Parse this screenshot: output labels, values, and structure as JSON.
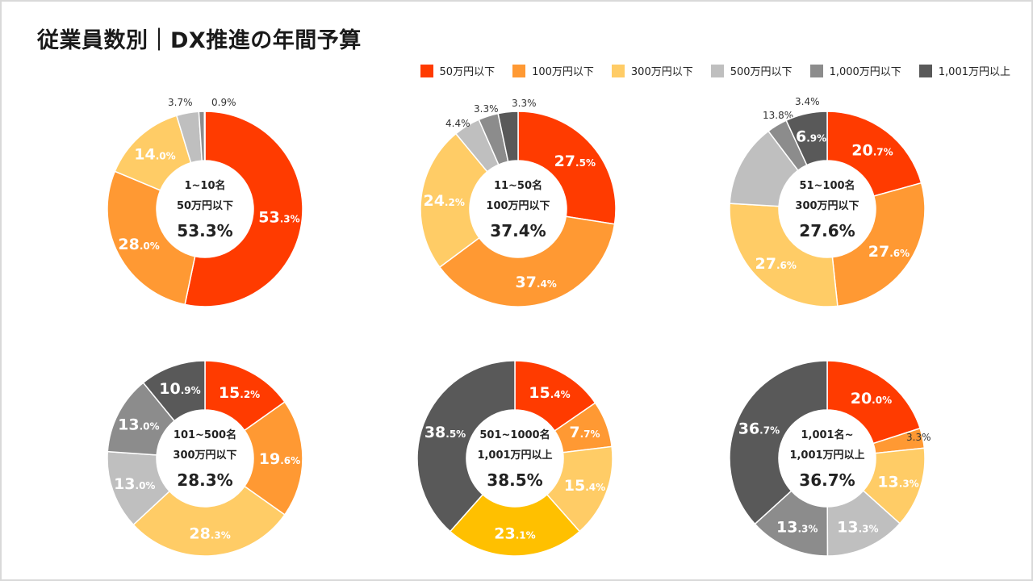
{
  "title": "従業員数別｜DX推進の年間予算",
  "legend": [
    {
      "label": "50万円以下",
      "color": "#ff3b00"
    },
    {
      "label": "100万円以下",
      "color": "#ff9933"
    },
    {
      "label": "300万円以下",
      "color": "#ffcc66"
    },
    {
      "label": "500万円以下",
      "color": "#bfbfbf"
    },
    {
      "label": "1,000万円以下",
      "color": "#8c8c8c"
    },
    {
      "label": "1,001万円以上",
      "color": "#595959"
    }
  ],
  "chart_data": [
    {
      "type": "pie",
      "group": "1~10名",
      "center_label": "50万円以下",
      "center_value": "53.3%",
      "categories": [
        "50万円以下",
        "100万円以下",
        "300万円以下",
        "500万円以下",
        "1,000万円以下",
        "1,001万円以上"
      ],
      "values": [
        53.3,
        28.0,
        14.0,
        3.7,
        0.9,
        0.1
      ],
      "labels": [
        "53.3%",
        "28.0%",
        "14.0%",
        "3.7%",
        "0.9%",
        ""
      ]
    },
    {
      "type": "pie",
      "group": "11~50名",
      "center_label": "100万円以下",
      "center_value": "37.4%",
      "categories": [
        "50万円以下",
        "100万円以下",
        "300万円以下",
        "500万円以下",
        "1,000万円以下",
        "1,001万円以上"
      ],
      "values": [
        27.5,
        37.4,
        24.2,
        4.4,
        3.3,
        3.3
      ],
      "labels": [
        "27.5%",
        "37.4%",
        "24.2%",
        "4.4%",
        "3.3%",
        "3.3%"
      ]
    },
    {
      "type": "pie",
      "group": "51~100名",
      "center_label": "300万円以下",
      "center_value": "27.6%",
      "categories": [
        "50万円以下",
        "100万円以下",
        "300万円以下",
        "500万円以下",
        "1,000万円以下",
        "1,001万円以上"
      ],
      "values": [
        20.7,
        27.6,
        27.6,
        13.8,
        3.4,
        6.9
      ],
      "labels": [
        "20.7%",
        "27.6%",
        "27.6%",
        "13.8%",
        "3.4%",
        "6.9%"
      ]
    },
    {
      "type": "pie",
      "group": "101~500名",
      "center_label": "300万円以下",
      "center_value": "28.3%",
      "categories": [
        "50万円以下",
        "100万円以下",
        "300万円以下",
        "500万円以下",
        "1,000万円以下",
        "1,001万円以上"
      ],
      "values": [
        15.2,
        19.6,
        28.3,
        13.0,
        13.0,
        10.9
      ],
      "labels": [
        "15.2%",
        "19.6%",
        "28.3%",
        "13.0%",
        "13.0%",
        "10.9%"
      ]
    },
    {
      "type": "pie",
      "group": "501~1000名",
      "center_label": "1,001万円以上",
      "center_value": "38.5%",
      "categories": [
        "50万円以下",
        "100万円以下",
        "300万円以下",
        "500万円以下",
        "1,000万円以下",
        "1,001万円以上"
      ],
      "values": [
        15.4,
        7.7,
        15.4,
        23.1,
        0,
        38.5
      ],
      "labels": [
        "15.4%",
        "7.7%",
        "15.4%",
        "23.1%",
        "",
        "38.5%"
      ],
      "colors": [
        "#ff3b00",
        "#ff9933",
        "#ffcc66",
        "#ffc000",
        "#8c8c8c",
        "#595959"
      ]
    },
    {
      "type": "pie",
      "group": "1,001名~",
      "center_label": "1,001万円以上",
      "center_value": "36.7%",
      "categories": [
        "50万円以下",
        "100万円以下",
        "300万円以下",
        "500万円以下",
        "1,000万円以下",
        "1,001万円以上"
      ],
      "values": [
        20.0,
        3.3,
        13.3,
        13.3,
        13.3,
        36.7
      ],
      "labels": [
        "20.0%",
        "3.3%",
        "13.3%",
        "13.3%",
        "13.3%",
        "36.7%"
      ]
    }
  ]
}
